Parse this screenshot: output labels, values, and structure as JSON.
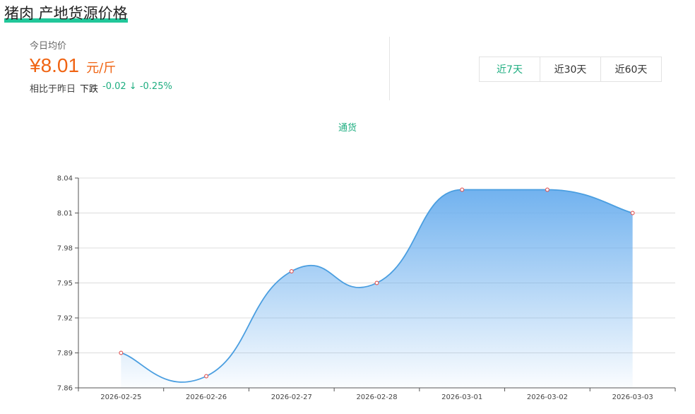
{
  "header": {
    "title": "猪肉 产地货源价格"
  },
  "summary": {
    "today_label": "今日均价",
    "price": "¥8.01",
    "unit": "元/斤",
    "compare_label": "相比于昨日",
    "direction": "下跌",
    "change": "-0.02 ↓ -0.25%"
  },
  "range_tabs": [
    {
      "label": "近7天",
      "active": true
    },
    {
      "label": "近30天",
      "active": false
    },
    {
      "label": "近60天",
      "active": false
    }
  ],
  "colors": {
    "accent": "#1fae81",
    "price": "#f06413",
    "line": "#4a9ee0",
    "point": "#e05050"
  },
  "chart_data": {
    "type": "area",
    "legend": [
      "通货"
    ],
    "x": [
      "2026-02-25",
      "2026-02-26",
      "2026-02-27",
      "2026-02-28",
      "2026-03-01",
      "2026-03-02",
      "2026-03-03"
    ],
    "series": [
      {
        "name": "通货",
        "values": [
          7.89,
          7.87,
          7.96,
          7.95,
          8.03,
          8.03,
          8.01
        ]
      }
    ],
    "yticks": [
      "7.86",
      "7.89",
      "7.92",
      "7.95",
      "7.98",
      "8.01",
      "8.04"
    ],
    "ylim": [
      7.86,
      8.04
    ],
    "smooth": true,
    "grid": true,
    "legend_position": "top-center"
  }
}
